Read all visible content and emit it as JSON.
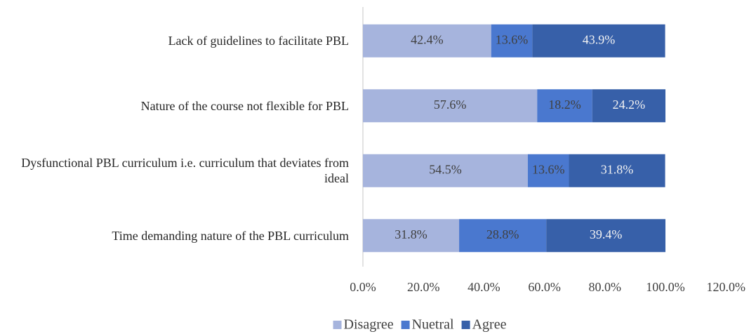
{
  "chart_data": {
    "type": "stacked_barh",
    "categories": [
      "Lack of guidelines to facilitate PBL",
      "Nature of the course not flexible for PBL",
      "Dysfunctional PBL curriculum i.e. curriculum that deviates from ideal",
      "Time demanding nature of the PBL curriculum"
    ],
    "series": [
      {
        "name": "Disagree",
        "color": "#a6b4dd",
        "values": [
          42.4,
          57.6,
          54.5,
          31.8
        ],
        "value_labels": [
          "42.4%",
          "57.6%",
          "54.5%",
          "31.8%"
        ]
      },
      {
        "name": "Nuetral",
        "color": "#4a78cf",
        "values": [
          13.6,
          18.2,
          13.6,
          28.8
        ],
        "value_labels": [
          "13.6%",
          "18.2%",
          "13.6%",
          "28.8%"
        ]
      },
      {
        "name": "Agree",
        "color": "#3760a9",
        "values": [
          43.9,
          24.2,
          31.8,
          39.4
        ],
        "value_labels": [
          "43.9%",
          "24.2%",
          "31.8%",
          "39.4%"
        ]
      }
    ],
    "xlim": [
      0,
      120
    ],
    "xticks": [
      {
        "value": 0,
        "label": "0.0%"
      },
      {
        "value": 20,
        "label": "20.0%"
      },
      {
        "value": 40,
        "label": "40.0%"
      },
      {
        "value": 60,
        "label": "60.0%"
      },
      {
        "value": 80,
        "label": "80.0%"
      },
      {
        "value": 100,
        "label": "100.0%"
      },
      {
        "value": 120,
        "label": "120.0%"
      }
    ],
    "legend": "bottom"
  }
}
